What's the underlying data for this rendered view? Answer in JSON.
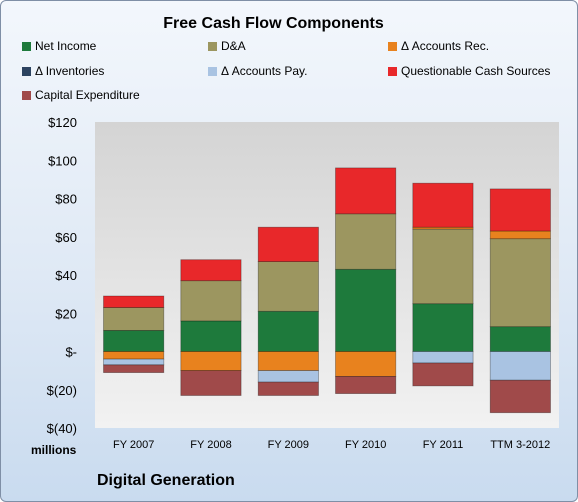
{
  "chart_data": {
    "type": "bar",
    "stacked": true,
    "title": "Free Cash Flow Components",
    "xlabel": "",
    "ylabel": "",
    "units_label": "millions",
    "company": "Digital Generation",
    "categories": [
      "FY 2007",
      "FY 2008",
      "FY 2009",
      "FY 2010",
      "FY 2011",
      "TTM 3-2012"
    ],
    "ylim": [
      -40,
      120
    ],
    "yticks": [
      -40,
      -20,
      0,
      20,
      40,
      60,
      80,
      100,
      120
    ],
    "ytick_labels": [
      "$(40)",
      "$(20)",
      "$-",
      "$20",
      "$40",
      "$60",
      "$80",
      "$100",
      "$120"
    ],
    "grid": false,
    "legend_position": "top",
    "series": [
      {
        "name": "Net Income",
        "color": "#1e7a3c",
        "values": [
          11,
          16,
          21,
          43,
          25,
          13
        ]
      },
      {
        "name": "D&A",
        "color": "#9c9660",
        "values": [
          12,
          21,
          26,
          29,
          39,
          46
        ]
      },
      {
        "name": "Δ Accounts Rec.",
        "color": "#e8821e",
        "values": [
          -4,
          -10,
          -10,
          -13,
          1,
          4
        ]
      },
      {
        "name": "Δ Inventories",
        "color": "#2c4360",
        "values": [
          0,
          0,
          0,
          0,
          0,
          0
        ]
      },
      {
        "name": "Δ Accounts Pay.",
        "color": "#a9c3e2",
        "values": [
          -3,
          0,
          -6,
          0,
          -6,
          -15
        ]
      },
      {
        "name": "Questionable Cash Sources",
        "color": "#e8282a",
        "values": [
          6,
          11,
          18,
          24,
          23,
          22
        ]
      },
      {
        "name": "Capital Expenditure",
        "color": "#a04a4a",
        "values": [
          -4,
          -13,
          -7,
          -9,
          -12,
          -17
        ]
      }
    ]
  }
}
